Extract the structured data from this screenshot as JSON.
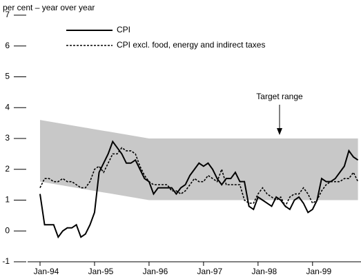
{
  "chart_data": {
    "type": "line",
    "y_label": "per cent – year over year",
    "annotation": "Target range",
    "categories": [
      "Jan-94",
      null,
      null,
      null,
      null,
      null,
      null,
      null,
      null,
      null,
      null,
      null,
      "Jan-95",
      null,
      null,
      null,
      null,
      null,
      null,
      null,
      null,
      null,
      null,
      null,
      "Jan-96",
      null,
      null,
      null,
      null,
      null,
      null,
      null,
      null,
      null,
      null,
      null,
      "Jan-97",
      null,
      null,
      null,
      null,
      null,
      null,
      null,
      null,
      null,
      null,
      null,
      "Jan-98",
      null,
      null,
      null,
      null,
      null,
      null,
      null,
      null,
      null,
      null,
      null,
      "Jan-99",
      null,
      null,
      null,
      null,
      null,
      null,
      null,
      null,
      null,
      null
    ],
    "series": [
      {
        "name": "CPI",
        "color": "#000000",
        "dash": "solid",
        "values": [
          1.2,
          0.2,
          0.2,
          0.2,
          -0.2,
          0.0,
          0.1,
          0.1,
          0.2,
          -0.2,
          -0.1,
          0.2,
          0.6,
          1.9,
          2.2,
          2.5,
          2.9,
          2.7,
          2.5,
          2.2,
          2.2,
          2.3,
          2.0,
          1.7,
          1.6,
          1.2,
          1.4,
          1.4,
          1.4,
          1.4,
          1.2,
          1.4,
          1.5,
          1.8,
          2.0,
          2.2,
          2.1,
          2.2,
          2.0,
          1.7,
          1.5,
          1.7,
          1.7,
          1.9,
          1.6,
          1.6,
          0.8,
          0.7,
          1.1,
          1.0,
          0.9,
          0.8,
          1.1,
          1.0,
          0.8,
          0.7,
          1.0,
          1.1,
          0.9,
          0.6,
          0.7,
          1.0,
          1.7,
          1.6,
          1.6,
          1.7,
          1.9,
          2.1,
          2.6,
          2.4,
          2.3
        ]
      },
      {
        "name": "CPI excl. food, energy and indirect taxes",
        "color": "#000000",
        "dash": "dashed",
        "values": [
          1.4,
          1.7,
          1.7,
          1.6,
          1.6,
          1.7,
          1.6,
          1.6,
          1.5,
          1.4,
          1.4,
          1.6,
          2.0,
          2.1,
          1.9,
          2.2,
          2.5,
          2.5,
          2.7,
          2.6,
          2.6,
          2.5,
          2.1,
          1.8,
          1.6,
          1.5,
          1.5,
          1.5,
          1.5,
          1.3,
          1.3,
          1.2,
          1.3,
          1.5,
          1.7,
          1.6,
          1.6,
          1.8,
          1.7,
          1.6,
          2.0,
          1.5,
          1.5,
          1.5,
          1.5,
          1.0,
          0.9,
          0.9,
          1.2,
          1.4,
          1.2,
          1.1,
          1.0,
          1.1,
          0.8,
          1.1,
          1.2,
          1.2,
          1.4,
          1.2,
          0.9,
          1.0,
          1.3,
          1.5,
          1.6,
          1.6,
          1.6,
          1.7,
          1.7,
          1.9,
          1.6
        ]
      }
    ],
    "target_range": {
      "color": "#c8c8c8",
      "upper": [
        3.6,
        3.575,
        3.55,
        3.525,
        3.5,
        3.475,
        3.45,
        3.425,
        3.4,
        3.375,
        3.35,
        3.325,
        3.3,
        3.275,
        3.25,
        3.225,
        3.2,
        3.175,
        3.15,
        3.125,
        3.1,
        3.075,
        3.05,
        3.025,
        3.0,
        3,
        3,
        3,
        3,
        3,
        3,
        3,
        3,
        3,
        3,
        3,
        3,
        3,
        3,
        3,
        3,
        3,
        3,
        3,
        3,
        3,
        3,
        3,
        3,
        3,
        3,
        3,
        3,
        3,
        3,
        3,
        3,
        3,
        3,
        3,
        3,
        3,
        3,
        3,
        3,
        3,
        3,
        3,
        3,
        3,
        3
      ],
      "lower": [
        1.6,
        1.575,
        1.55,
        1.525,
        1.5,
        1.475,
        1.45,
        1.425,
        1.4,
        1.375,
        1.35,
        1.325,
        1.3,
        1.275,
        1.25,
        1.225,
        1.2,
        1.175,
        1.15,
        1.125,
        1.1,
        1.075,
        1.05,
        1.025,
        1.0,
        1,
        1,
        1,
        1,
        1,
        1,
        1,
        1,
        1,
        1,
        1,
        1,
        1,
        1,
        1,
        1,
        1,
        1,
        1,
        1,
        1,
        1,
        1,
        1,
        1,
        1,
        1,
        1,
        1,
        1,
        1,
        1,
        1,
        1,
        1,
        1,
        1,
        1,
        1,
        1,
        1,
        1,
        1,
        1,
        1,
        1
      ]
    },
    "ylim": [
      -1,
      7
    ],
    "yticks": [
      -1,
      0,
      1,
      2,
      3,
      4,
      5,
      6,
      7
    ]
  }
}
